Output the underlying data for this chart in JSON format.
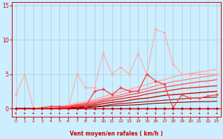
{
  "x": [
    0,
    1,
    2,
    3,
    4,
    5,
    6,
    7,
    8,
    9,
    10,
    11,
    12,
    13,
    14,
    15,
    16,
    17,
    18,
    19,
    20,
    21,
    22,
    23
  ],
  "background_color": "#cceeff",
  "grid_color": "#aacccc",
  "axis_color": "#cc0000",
  "xlabel": "Vent moyen/en rafales ( km/h )",
  "xlabel_color": "#cc0000",
  "tick_color": "#cc0000",
  "ylim": [
    -1.2,
    15.5
  ],
  "yticks": [
    0,
    5,
    10,
    15
  ],
  "lines": [
    {
      "y": [
        2,
        5,
        0,
        0,
        0,
        0,
        0,
        5,
        3,
        3,
        8,
        5,
        6,
        5,
        8,
        5,
        11.5,
        11,
        6.5,
        5,
        5,
        5,
        5,
        5
      ],
      "color": "#ffaaaa",
      "lw": 0.8,
      "marker": "D",
      "ms": 2.0,
      "zorder": 3
    },
    {
      "y": [
        0,
        0,
        0,
        0,
        0,
        0.3,
        0.5,
        0.8,
        1.0,
        1.3,
        1.7,
        2.1,
        2.4,
        2.8,
        3.1,
        3.5,
        3.9,
        4.2,
        4.6,
        4.9,
        5.1,
        5.3,
        5.5,
        5.7
      ],
      "color": "#ffaaaa",
      "lw": 1.0,
      "marker": null,
      "ms": 0,
      "zorder": 2
    },
    {
      "y": [
        0,
        0,
        0,
        0,
        0,
        0.2,
        0.4,
        0.6,
        0.8,
        1.1,
        1.4,
        1.7,
        2.0,
        2.3,
        2.6,
        2.9,
        3.3,
        3.6,
        3.9,
        4.1,
        4.3,
        4.5,
        4.7,
        4.9
      ],
      "color": "#ff8888",
      "lw": 1.0,
      "marker": null,
      "ms": 0,
      "zorder": 2
    },
    {
      "y": [
        0,
        0,
        0,
        0,
        0,
        0.1,
        0.3,
        0.5,
        0.7,
        0.9,
        1.2,
        1.5,
        1.7,
        2.0,
        2.2,
        2.5,
        2.8,
        3.1,
        3.3,
        3.5,
        3.7,
        3.9,
        4.0,
        4.2
      ],
      "color": "#ff5555",
      "lw": 1.0,
      "marker": null,
      "ms": 0,
      "zorder": 2
    },
    {
      "y": [
        0,
        0,
        0,
        0,
        0,
        0.05,
        0.2,
        0.4,
        0.5,
        0.7,
        1.0,
        1.2,
        1.4,
        1.6,
        1.8,
        2.1,
        2.3,
        2.5,
        2.7,
        2.9,
        3.0,
        3.1,
        3.2,
        3.3
      ],
      "color": "#ee2222",
      "lw": 1.0,
      "marker": null,
      "ms": 0,
      "zorder": 2
    },
    {
      "y": [
        0,
        0,
        0,
        0,
        0,
        0,
        0.1,
        0.2,
        0.3,
        0.5,
        0.7,
        0.9,
        1.0,
        1.2,
        1.4,
        1.5,
        1.7,
        1.9,
        2.0,
        2.1,
        2.2,
        2.3,
        2.4,
        2.5
      ],
      "color": "#cc0000",
      "lw": 1.0,
      "marker": null,
      "ms": 0,
      "zorder": 2
    },
    {
      "y": [
        0,
        0,
        0,
        0,
        0,
        0,
        0.05,
        0.1,
        0.2,
        0.3,
        0.4,
        0.6,
        0.7,
        0.8,
        0.9,
        1.0,
        1.1,
        1.2,
        1.3,
        1.4,
        1.5,
        1.55,
        1.6,
        1.65
      ],
      "color": "#aa0000",
      "lw": 0.8,
      "marker": null,
      "ms": 0,
      "zorder": 2
    },
    {
      "y": [
        0,
        0,
        0,
        0,
        0,
        0,
        0,
        0.05,
        0.1,
        0.2,
        0.3,
        0.4,
        0.45,
        0.5,
        0.55,
        0.65,
        0.75,
        0.8,
        0.85,
        0.9,
        0.95,
        1.0,
        1.0,
        1.05
      ],
      "color": "#880000",
      "lw": 0.8,
      "marker": null,
      "ms": 0,
      "zorder": 2
    },
    {
      "y": [
        0,
        0,
        0,
        0.1,
        0.3,
        0.3,
        0.2,
        0.5,
        0.3,
        2.5,
        2.8,
        2.0,
        3.0,
        2.5,
        2.5,
        5.0,
        4.0,
        3.5,
        0.1,
        2.0,
        1.5,
        1.5,
        1.8,
        2.0
      ],
      "color": "#ff4444",
      "lw": 1.0,
      "marker": "D",
      "ms": 2.0,
      "zorder": 4
    },
    {
      "y": [
        0,
        0,
        0,
        0,
        0,
        0,
        0,
        0,
        0,
        0,
        0,
        0,
        0,
        0,
        0,
        0,
        0,
        0,
        0,
        0,
        0,
        0,
        0,
        0
      ],
      "color": "#cc0000",
      "lw": 1.0,
      "marker": "D",
      "ms": 2.0,
      "zorder": 4
    }
  ],
  "wind_arrow_angles": [
    225,
    225,
    225,
    225,
    225,
    225,
    225,
    225,
    315,
    315,
    315,
    315,
    315,
    270,
    270,
    225,
    225,
    135,
    135,
    135,
    135,
    135,
    135,
    135
  ]
}
